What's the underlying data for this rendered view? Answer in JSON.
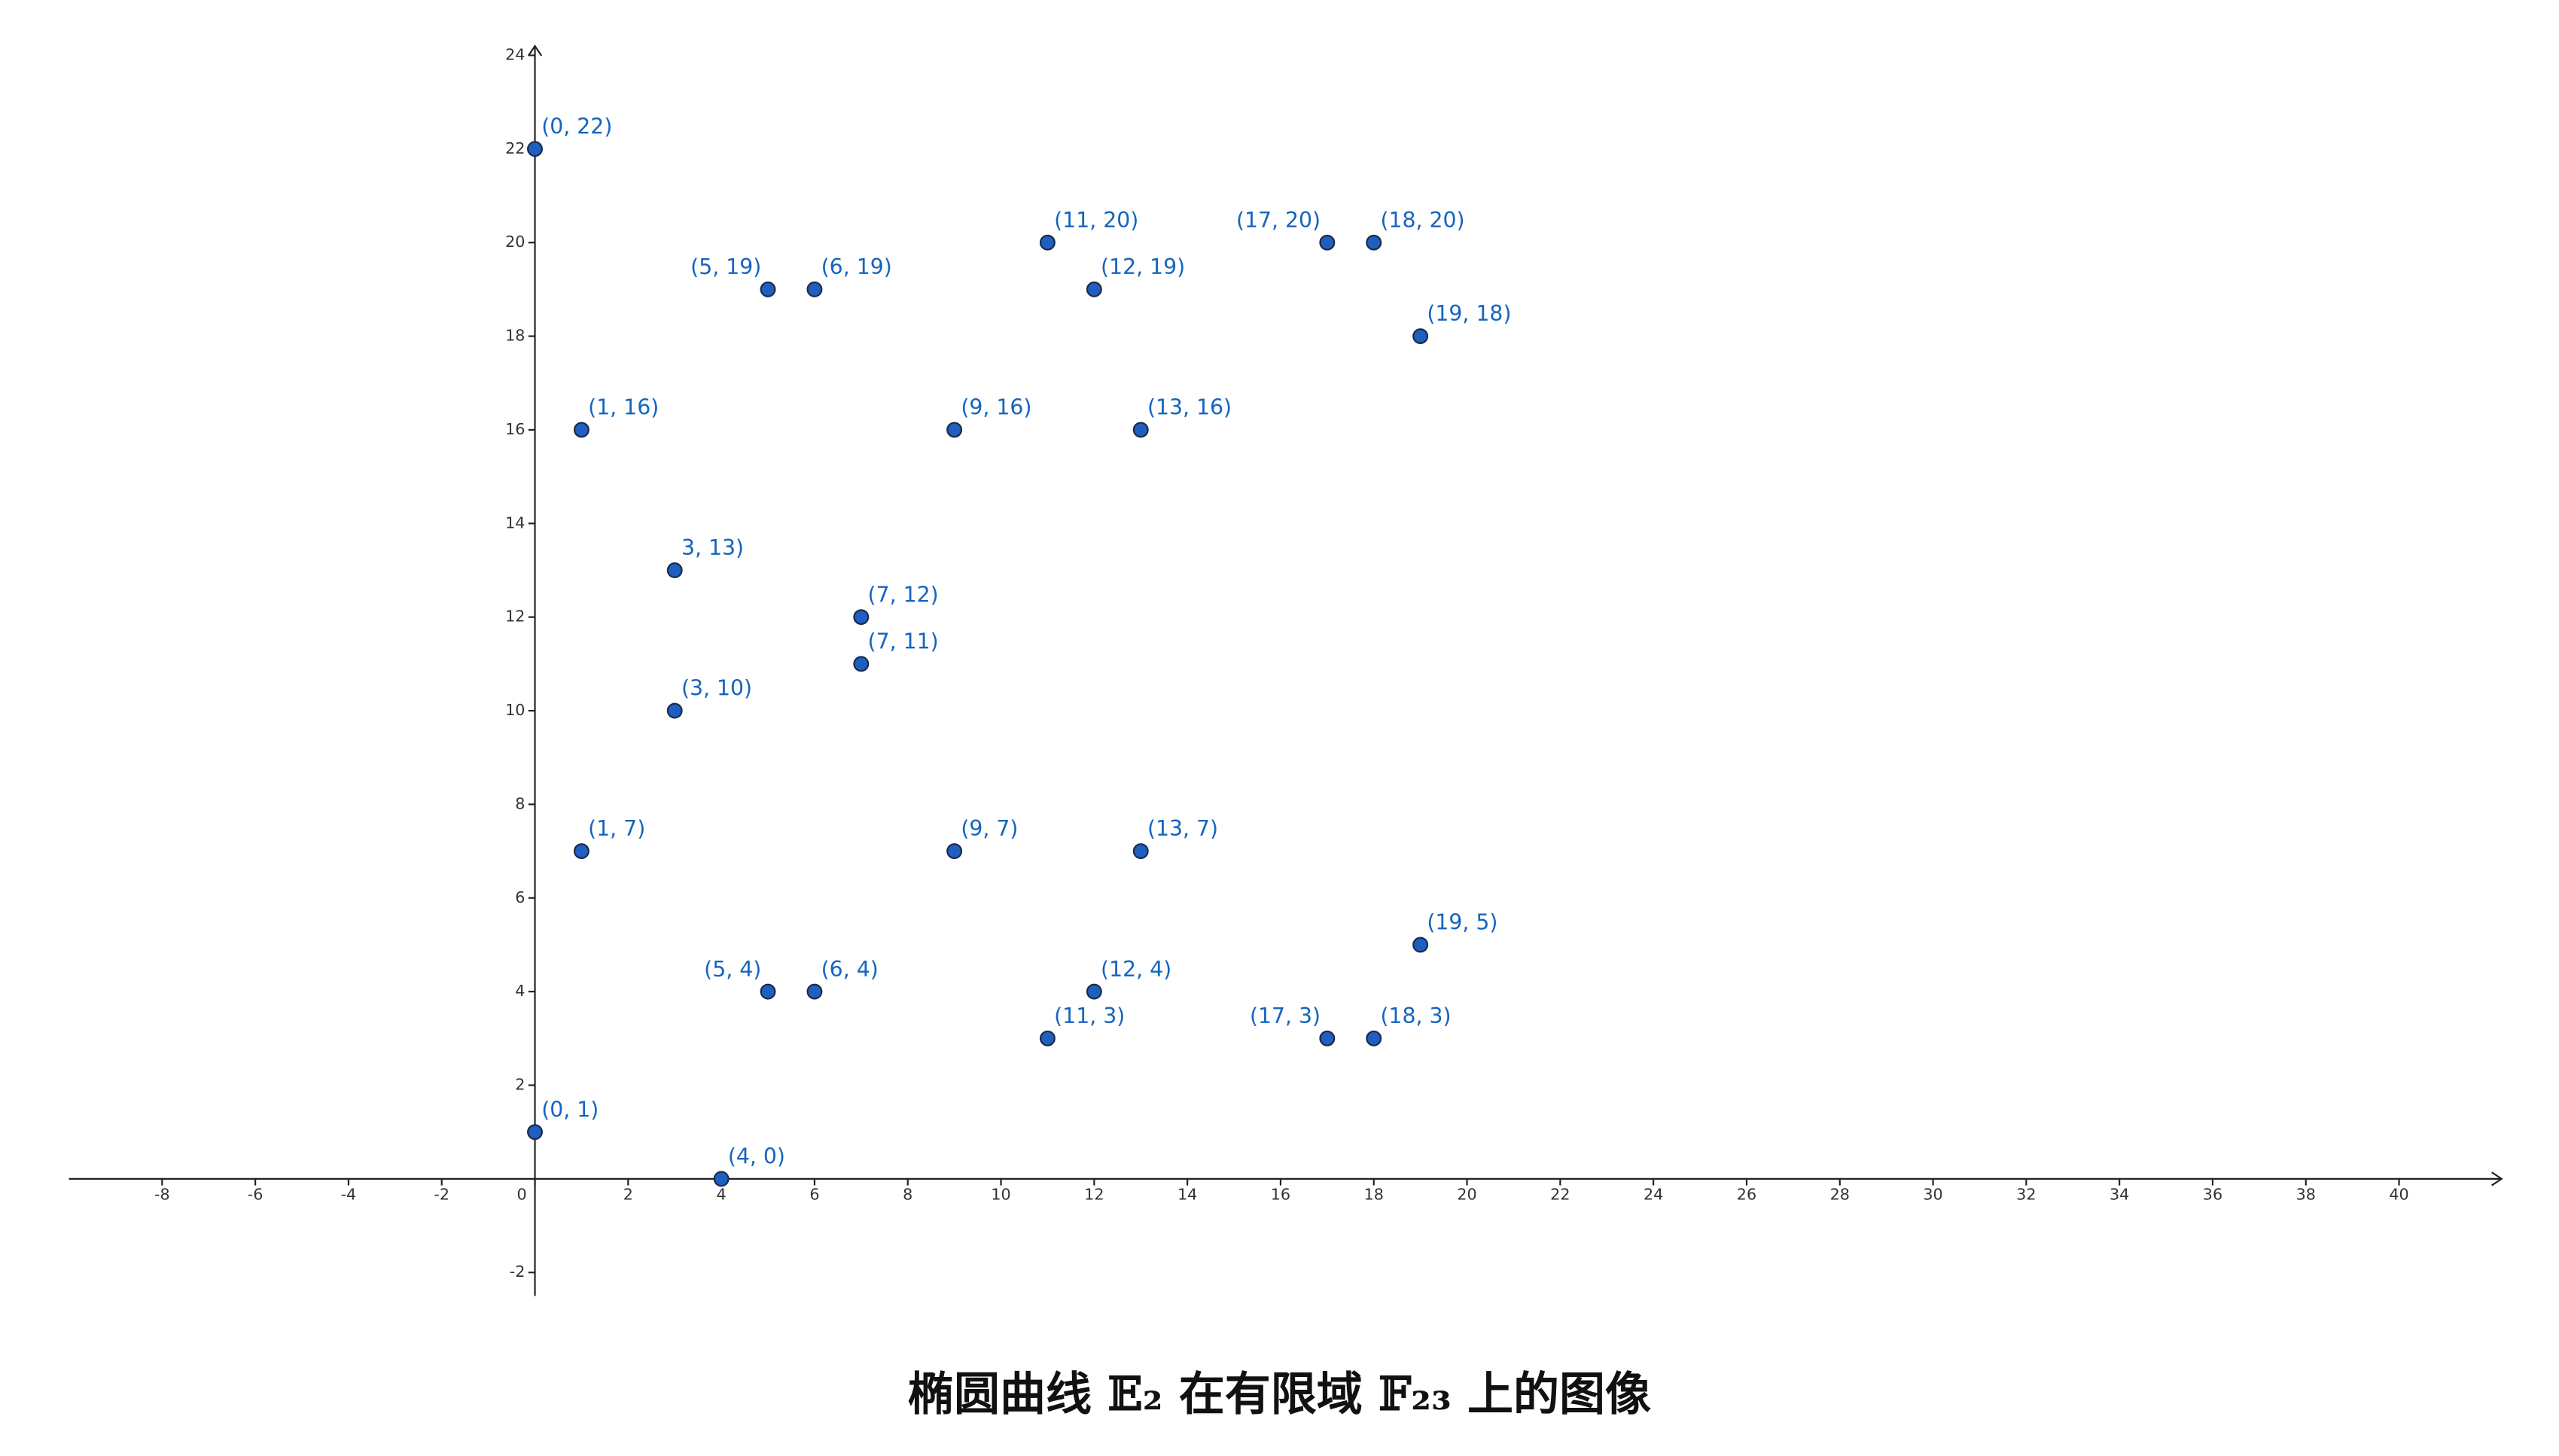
{
  "chart_data": {
    "type": "scatter",
    "title": "椭圆曲线 𝔼₂ 在有限域 𝔽₂₃ 上的图像",
    "xlim": [
      -10,
      42.2
    ],
    "ylim": [
      -2.5,
      24.2
    ],
    "xticks": [
      -8,
      -6,
      -4,
      -2,
      0,
      2,
      4,
      6,
      8,
      10,
      12,
      14,
      16,
      18,
      20,
      22,
      24,
      26,
      28,
      30,
      32,
      34,
      36,
      38,
      40
    ],
    "yticks": [
      -2,
      2,
      4,
      6,
      8,
      10,
      12,
      14,
      16,
      18,
      20,
      22,
      24
    ],
    "series": [
      {
        "color": "#1f5fbf",
        "x": [
          0,
          5,
          6,
          11,
          12,
          17,
          18,
          19,
          1,
          9,
          13,
          3,
          7,
          7,
          3,
          1,
          9,
          13,
          19,
          5,
          6,
          12,
          11,
          17,
          18,
          0,
          4
        ],
        "values": [
          22,
          19,
          19,
          20,
          19,
          20,
          20,
          18,
          16,
          16,
          16,
          13,
          12,
          11,
          10,
          7,
          7,
          7,
          5,
          4,
          4,
          4,
          3,
          3,
          3,
          1,
          0
        ],
        "value_labels": [
          "(0, 22)",
          "(5, 19)",
          "(6, 19)",
          "(11, 20)",
          "(12, 19)",
          "(17, 20)",
          "(18, 20)",
          "(19, 18)",
          "(1, 16)",
          "(9, 16)",
          "(13, 16)",
          "3, 13)",
          "(7, 12)",
          "(7, 11)",
          "(3, 10)",
          "(1, 7)",
          "(9, 7)",
          "(13, 7)",
          "(19, 5)",
          "(5, 4)",
          "(6, 4)",
          "(12, 4)",
          "(11, 3)",
          "(17, 3)",
          "(18, 3)",
          "(0, 1)",
          "(4, 0)"
        ]
      }
    ]
  }
}
